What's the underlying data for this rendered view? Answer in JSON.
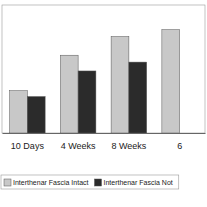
{
  "chart_data": {
    "type": "bar",
    "categories": [
      "10 Days",
      "4 Weeks",
      "8 Weeks",
      "6"
    ],
    "series": [
      {
        "name": "Interthenar Fascia Intact",
        "color": "#c8c8c8",
        "values": [
          43,
          79,
          98,
          105
        ]
      },
      {
        "name": "Interthenar Fascia Not",
        "color": "#2b2b2b",
        "values": [
          37,
          63,
          72,
          null
        ]
      }
    ],
    "ylim": [
      0,
      130
    ],
    "grid": false,
    "legend": "bottom",
    "tick_labels": "x"
  }
}
